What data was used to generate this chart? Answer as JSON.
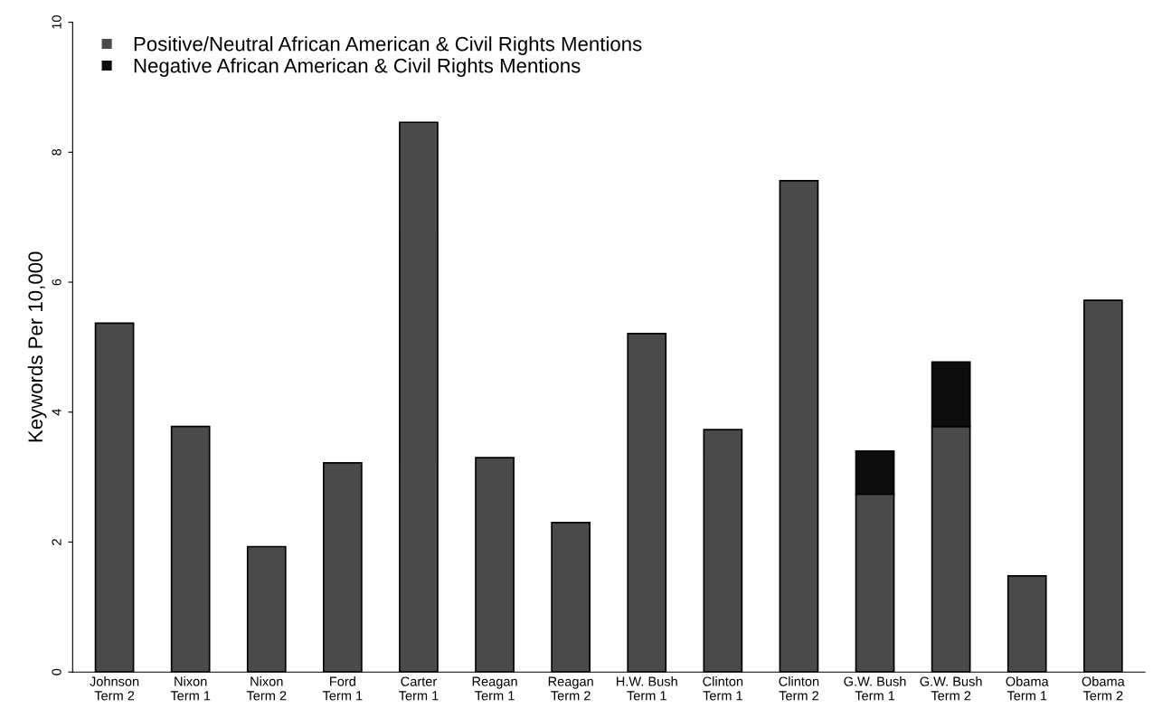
{
  "chart_data": {
    "type": "bar",
    "stacked": true,
    "ylabel": "Keywords Per 10,000",
    "categories": [
      "Johnson\nTerm 2",
      "Nixon\nTerm 1",
      "Nixon\nTerm 2",
      "Ford\nTerm 1",
      "Carter\nTerm 1",
      "Reagan\nTerm 1",
      "Reagan\nTerm 2",
      "H.W. Bush\nTerm 1",
      "Clinton\nTerm 1",
      "Clinton\nTerm 2",
      "G.W. Bush\nTerm 1",
      "G.W. Bush\nTerm 2",
      "Obama\nTerm 1",
      "Obama\nTerm 2"
    ],
    "series": [
      {
        "name": "Positive/Neutral African American & Civil Rights Mentions",
        "color": "#4a4a4a",
        "values": [
          5.37,
          3.78,
          1.93,
          3.22,
          8.46,
          3.3,
          2.3,
          5.21,
          3.73,
          7.56,
          2.74,
          3.78,
          1.48,
          5.72
        ]
      },
      {
        "name": "Negative African American & Civil Rights Mentions",
        "color": "#0d0d0d",
        "values": [
          null,
          null,
          null,
          null,
          null,
          null,
          null,
          null,
          null,
          null,
          0.66,
          0.99,
          null,
          null
        ]
      }
    ],
    "ylim": [
      0,
      10
    ],
    "yticks": [
      0,
      2,
      4,
      6,
      8,
      10
    ],
    "grid": false,
    "legend": "top left"
  }
}
